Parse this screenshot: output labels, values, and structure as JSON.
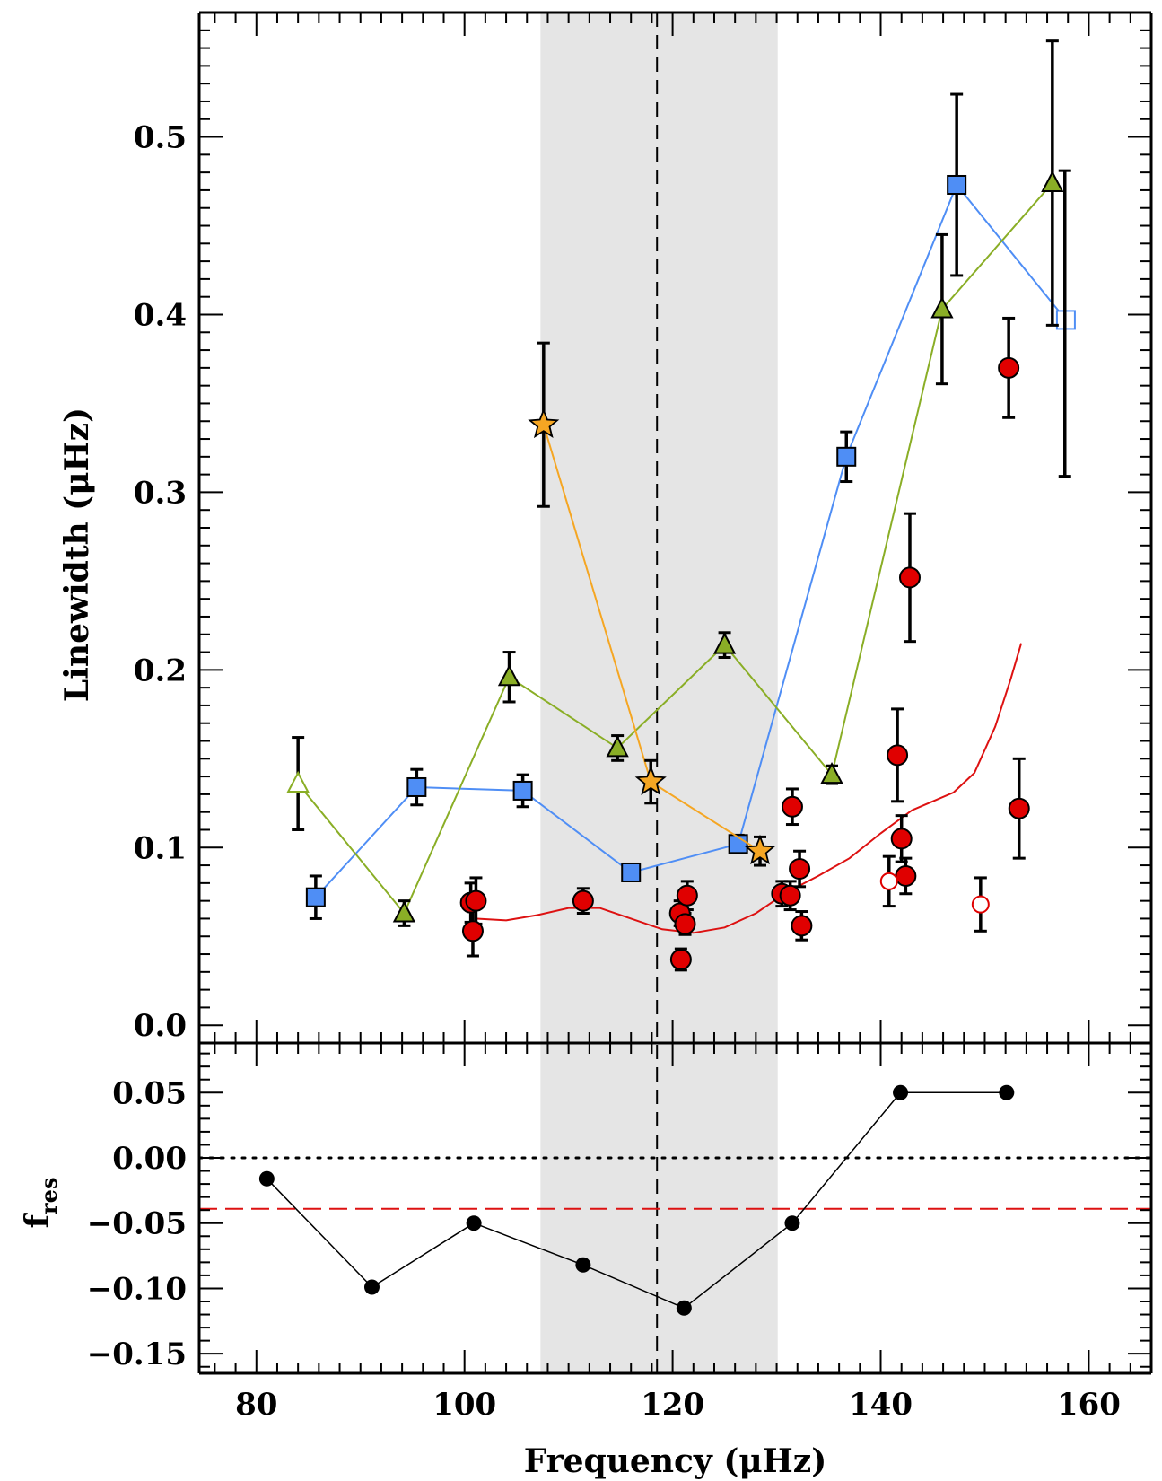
{
  "chart_data": [
    {
      "panel": "top",
      "type": "scatter",
      "title": "",
      "xlabel": "Frequency (μHz)",
      "ylabel": "Linewidth (μHz)",
      "xlim": [
        74.5,
        166
      ],
      "ylim": [
        -0.01,
        0.57
      ],
      "yticks": [
        "0.0",
        "0.1",
        "0.2",
        "0.3",
        "0.4",
        "0.5"
      ],
      "ytick_values": [
        0.0,
        0.1,
        0.2,
        0.3,
        0.4,
        0.5
      ],
      "shaded_region": {
        "x0": 107.3,
        "x1": 130.1,
        "color": "#e5e5e5"
      },
      "vline": {
        "x": 118.5,
        "style": "dashed"
      },
      "series": [
        {
          "name": "squares",
          "marker": "square",
          "color": "#4f8ef5",
          "line": true,
          "points": [
            {
              "x": 85.7,
              "y": 0.072,
              "err": 0.012
            },
            {
              "x": 95.4,
              "y": 0.134,
              "err": 0.01
            },
            {
              "x": 105.6,
              "y": 0.132,
              "err": 0.009
            },
            {
              "x": 116.0,
              "y": 0.086,
              "err": 0.004
            },
            {
              "x": 126.3,
              "y": 0.102,
              "err": 0.005
            },
            {
              "x": 136.7,
              "y": 0.32,
              "err": 0.014
            },
            {
              "x": 147.3,
              "y": 0.473,
              "err": 0.051
            },
            {
              "x": 157.8,
              "y": 0.397,
              "err": 0.0,
              "open": true
            }
          ]
        },
        {
          "name": "triangles",
          "marker": "triangle",
          "color": "#8aae26",
          "line": true,
          "points": [
            {
              "x": 84.0,
              "y": 0.136,
              "err": 0.026,
              "open": true
            },
            {
              "x": 94.2,
              "y": 0.063,
              "err": 0.007
            },
            {
              "x": 104.3,
              "y": 0.196,
              "err": 0.014
            },
            {
              "x": 114.7,
              "y": 0.156,
              "err": 0.007
            },
            {
              "x": 125.0,
              "y": 0.214,
              "err": 0.007
            },
            {
              "x": 135.3,
              "y": 0.141,
              "err": 0.005
            },
            {
              "x": 145.9,
              "y": 0.403,
              "err": 0.042
            },
            {
              "x": 156.5,
              "y": 0.474,
              "err": 0.08
            },
            {
              "x": 157.7,
              "y": 0.395,
              "err": 0.086,
              "errOnly": true
            }
          ]
        },
        {
          "name": "stars",
          "marker": "star",
          "color": "#f5a623",
          "line": true,
          "points": [
            {
              "x": 107.6,
              "y": 0.338,
              "err": 0.046
            },
            {
              "x": 117.9,
              "y": 0.137,
              "err": 0.012
            },
            {
              "x": 128.4,
              "y": 0.098,
              "err": 0.008
            }
          ]
        },
        {
          "name": "circles",
          "marker": "circle",
          "color": "#e00000",
          "line": false,
          "points": [
            {
              "x": 100.6,
              "y": 0.069,
              "err": 0.011
            },
            {
              "x": 100.8,
              "y": 0.053,
              "err": 0.014
            },
            {
              "x": 101.1,
              "y": 0.07,
              "err": 0.013
            },
            {
              "x": 111.4,
              "y": 0.07,
              "err": 0.007
            },
            {
              "x": 120.7,
              "y": 0.063,
              "err": 0.007
            },
            {
              "x": 120.8,
              "y": 0.037,
              "err": 0.006
            },
            {
              "x": 121.2,
              "y": 0.057,
              "err": 0.006
            },
            {
              "x": 121.4,
              "y": 0.073,
              "err": 0.008
            },
            {
              "x": 130.5,
              "y": 0.074,
              "err": 0.007
            },
            {
              "x": 131.3,
              "y": 0.073,
              "err": 0.008
            },
            {
              "x": 131.5,
              "y": 0.123,
              "err": 0.01
            },
            {
              "x": 132.2,
              "y": 0.088,
              "err": 0.01
            },
            {
              "x": 132.4,
              "y": 0.056,
              "err": 0.008
            },
            {
              "x": 141.6,
              "y": 0.152,
              "err": 0.026
            },
            {
              "x": 142.0,
              "y": 0.105,
              "err": 0.013
            },
            {
              "x": 142.4,
              "y": 0.084,
              "err": 0.01
            },
            {
              "x": 142.8,
              "y": 0.252,
              "err": 0.036
            },
            {
              "x": 152.3,
              "y": 0.37,
              "err": 0.028
            },
            {
              "x": 153.3,
              "y": 0.122,
              "err": 0.028
            },
            {
              "x": 140.8,
              "y": 0.081,
              "err": 0.014,
              "open": true
            },
            {
              "x": 149.6,
              "y": 0.068,
              "err": 0.015,
              "open": true
            }
          ]
        }
      ],
      "fit_curve": {
        "name": "smooth fit",
        "color": "#dd1111",
        "x": [
          101,
          104,
          107,
          110,
          113,
          116,
          119,
          122,
          125,
          128,
          131,
          134,
          137,
          140,
          143,
          145,
          147,
          149,
          151,
          152.5,
          153.5
        ],
        "y": [
          0.06,
          0.059,
          0.062,
          0.066,
          0.066,
          0.06,
          0.054,
          0.052,
          0.055,
          0.063,
          0.075,
          0.084,
          0.094,
          0.108,
          0.121,
          0.126,
          0.131,
          0.142,
          0.168,
          0.195,
          0.215
        ]
      }
    },
    {
      "panel": "bottom",
      "type": "line",
      "xlabel": "Frequency (μHz)",
      "ylabel": "fres",
      "ylabel_main": "f",
      "ylabel_sub": "res",
      "xlim": [
        74.5,
        166
      ],
      "ylim": [
        -0.165,
        0.088
      ],
      "xticks": [
        "80",
        "100",
        "120",
        "140",
        "160"
      ],
      "xtick_values": [
        80,
        100,
        120,
        140,
        160
      ],
      "yticks": [
        "0.05",
        "0.00",
        "−0.05",
        "−0.10",
        "−0.15"
      ],
      "ytick_values": [
        0.05,
        0.0,
        -0.05,
        -0.1,
        -0.15
      ],
      "x": [
        81.0,
        91.1,
        100.9,
        111.4,
        121.1,
        131.5,
        141.9,
        152.1
      ],
      "y": [
        -0.016,
        -0.099,
        -0.05,
        -0.082,
        -0.115,
        -0.05,
        0.05,
        0.05
      ],
      "hline_dotted": 0.0,
      "hline_dashed": {
        "y": -0.039,
        "color": "#dd1111"
      }
    }
  ]
}
